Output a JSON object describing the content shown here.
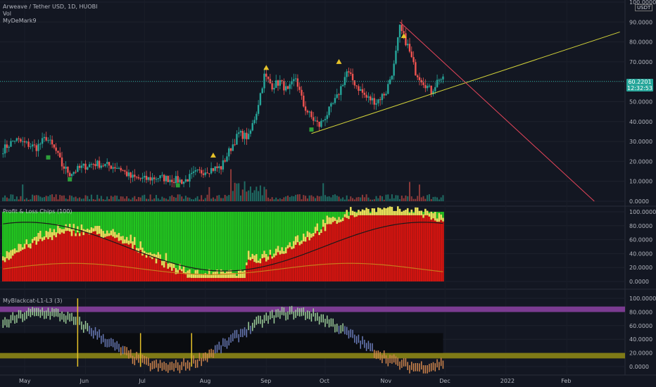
{
  "legend": {
    "symbol": "Arweave / Tether USD, 1D, HUOBI",
    "vol": "Vol",
    "indicator": "MyDeMark9"
  },
  "currency": "USDT",
  "last_price": "60.2201",
  "countdown": "12:32:53",
  "panes": {
    "chips_title": "Profit & Loss Chips (100)",
    "blackcat_title": "MyBlackcat-L1-L3 (3)"
  },
  "colors": {
    "up": "#26a69a",
    "down": "#ef5350",
    "trend_yellow": "#d4d43a",
    "trend_red": "#e5455a",
    "chips_green": "#22c41f",
    "chips_red": "#d3140f",
    "chips_yellow": "#e8e05a",
    "purple_band": "#7b3b91",
    "yellow_band": "#7f7a16"
  },
  "chart_data": [
    {
      "type": "candlestick",
      "title": "Arweave / Tether USD, 1D, HUOBI",
      "y_ticks": [
        "0.0000",
        "10.0000",
        "20.0000",
        "30.0000",
        "40.0000",
        "50.0000",
        "60.0000",
        "70.0000",
        "80.0000",
        "90.0000",
        "100.0000"
      ],
      "ylim": [
        0,
        100
      ],
      "x_ticks": [
        "May",
        "Jun",
        "Jul",
        "Aug",
        "Sep",
        "Oct",
        "Nov",
        "Dec",
        "2022",
        "Feb"
      ],
      "close_path": [
        {
          "date": "2021-04-20",
          "v": 26
        },
        {
          "date": "2021-04-26",
          "v": 31
        },
        {
          "date": "2021-05-01",
          "v": 29
        },
        {
          "date": "2021-05-07",
          "v": 27
        },
        {
          "date": "2021-05-12",
          "v": 32
        },
        {
          "date": "2021-05-17",
          "v": 25
        },
        {
          "date": "2021-05-20",
          "v": 18
        },
        {
          "date": "2021-05-24",
          "v": 14
        },
        {
          "date": "2021-05-30",
          "v": 17
        },
        {
          "date": "2021-06-05",
          "v": 19
        },
        {
          "date": "2021-06-12",
          "v": 18
        },
        {
          "date": "2021-06-18",
          "v": 17
        },
        {
          "date": "2021-06-24",
          "v": 12
        },
        {
          "date": "2021-07-01",
          "v": 11
        },
        {
          "date": "2021-07-08",
          "v": 12
        },
        {
          "date": "2021-07-15",
          "v": 11
        },
        {
          "date": "2021-07-21",
          "v": 10
        },
        {
          "date": "2021-07-27",
          "v": 14
        },
        {
          "date": "2021-08-03",
          "v": 16
        },
        {
          "date": "2021-08-09",
          "v": 17
        },
        {
          "date": "2021-08-13",
          "v": 25
        },
        {
          "date": "2021-08-18",
          "v": 34
        },
        {
          "date": "2021-08-23",
          "v": 32
        },
        {
          "date": "2021-08-27",
          "v": 45
        },
        {
          "date": "2021-08-31",
          "v": 63
        },
        {
          "date": "2021-09-04",
          "v": 58
        },
        {
          "date": "2021-09-08",
          "v": 60
        },
        {
          "date": "2021-09-12",
          "v": 55
        },
        {
          "date": "2021-09-16",
          "v": 62
        },
        {
          "date": "2021-09-20",
          "v": 48
        },
        {
          "date": "2021-09-24",
          "v": 42
        },
        {
          "date": "2021-09-28",
          "v": 38
        },
        {
          "date": "2021-10-02",
          "v": 44
        },
        {
          "date": "2021-10-07",
          "v": 52
        },
        {
          "date": "2021-10-12",
          "v": 65
        },
        {
          "date": "2021-10-17",
          "v": 58
        },
        {
          "date": "2021-10-22",
          "v": 52
        },
        {
          "date": "2021-10-27",
          "v": 50
        },
        {
          "date": "2021-11-01",
          "v": 55
        },
        {
          "date": "2021-11-05",
          "v": 68
        },
        {
          "date": "2021-11-08",
          "v": 87
        },
        {
          "date": "2021-11-12",
          "v": 78
        },
        {
          "date": "2021-11-16",
          "v": 65
        },
        {
          "date": "2021-11-20",
          "v": 60
        },
        {
          "date": "2021-11-24",
          "v": 55
        },
        {
          "date": "2021-11-28",
          "v": 62
        },
        {
          "date": "2021-12-01",
          "v": 60
        }
      ],
      "trendlines": [
        {
          "name": "support",
          "from": {
            "date": "2021-09-24",
            "v": 34
          },
          "to": {
            "date": "2022-02-28",
            "v": 85
          }
        },
        {
          "name": "resistance",
          "from": {
            "date": "2021-11-08",
            "v": 90
          },
          "to": {
            "date": "2022-02-15",
            "v": 0
          }
        }
      ]
    },
    {
      "type": "area",
      "title": "Profit & Loss Chips (100)",
      "y_ticks": [
        "0.0000",
        "20.0000",
        "40.0000",
        "60.0000",
        "80.0000",
        "100.0000"
      ],
      "ylim": [
        0,
        100
      ]
    },
    {
      "type": "bar",
      "title": "MyBlackcat-L1-L3 (3)",
      "y_ticks": [
        "0.0000",
        "20.0000",
        "40.0000",
        "60.0000",
        "80.0000",
        "100.0000"
      ],
      "ylim": [
        0,
        100
      ]
    }
  ]
}
